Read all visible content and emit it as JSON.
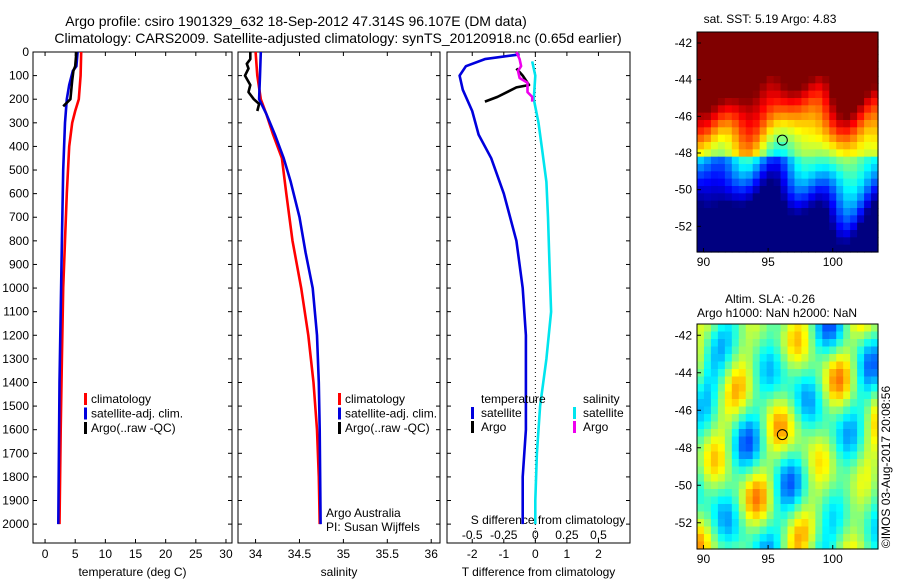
{
  "header": {
    "line1": "Argo profile: csiro 1901329_632 18-Sep-2012 47.314S 96.107E (DM data)",
    "line2": "Climatology: CARS2009. Satellite-adjusted climatology: synTS_20120918.nc (0.65d earlier)"
  },
  "colors": {
    "climatology": "#ff0000",
    "satellite": "#0000dd",
    "argo": "#000000",
    "salinity_satellite": "#00e5ee",
    "salinity_argo": "#ee00ee"
  },
  "depth_ticks": [
    "0",
    "100",
    "200",
    "300",
    "400",
    "500",
    "600",
    "700",
    "800",
    "900",
    "1000",
    "1100",
    "1200",
    "1300",
    "1400",
    "1500",
    "1600",
    "1700",
    "1800",
    "1900",
    "2000"
  ],
  "chart_data": [
    {
      "type": "line",
      "xlabel": "temperature (deg C)",
      "xticks": [
        "0",
        "5",
        "10",
        "15",
        "20",
        "25",
        "30"
      ],
      "xlim": [
        -2,
        31
      ],
      "ylim": [
        2080,
        0
      ],
      "legend": {
        "placement": "lower-center",
        "entries": [
          {
            "label": "climatology",
            "color": "#ff0000"
          },
          {
            "label": "satellite-adj. clim.",
            "color": "#0000dd"
          },
          {
            "label": "Argo(..raw -QC)",
            "color": "#000000"
          }
        ]
      },
      "series": [
        {
          "color": "#ff0000",
          "points": [
            [
              6.0,
              0
            ],
            [
              5.9,
              100
            ],
            [
              5.6,
              200
            ],
            [
              5.0,
              250
            ],
            [
              4.5,
              300
            ],
            [
              4.0,
              400
            ],
            [
              3.6,
              600
            ],
            [
              3.3,
              800
            ],
            [
              3.0,
              1000
            ],
            [
              2.8,
              1300
            ],
            [
              2.6,
              1600
            ],
            [
              2.5,
              1800
            ],
            [
              2.4,
              2000
            ]
          ]
        },
        {
          "color": "#0000dd",
          "points": [
            [
              5.4,
              0
            ],
            [
              5.2,
              60
            ],
            [
              4.6,
              80
            ],
            [
              4.0,
              140
            ],
            [
              3.6,
              200
            ],
            [
              3.3,
              300
            ],
            [
              3.0,
              500
            ],
            [
              2.8,
              800
            ],
            [
              2.6,
              1100
            ],
            [
              2.4,
              1400
            ],
            [
              2.3,
              1700
            ],
            [
              2.2,
              2000
            ]
          ]
        },
        {
          "color": "#000000",
          "points": [
            [
              5.2,
              0
            ],
            [
              5.0,
              60
            ],
            [
              4.7,
              80
            ],
            [
              4.5,
              120
            ],
            [
              4.2,
              200
            ],
            [
              3.0,
              230
            ]
          ]
        }
      ]
    },
    {
      "type": "line",
      "xlabel": "salinity",
      "xticks": [
        "34",
        "34.5",
        "35",
        "35.5",
        "36"
      ],
      "xlim": [
        33.8,
        36.1
      ],
      "ylim": [
        2080,
        0
      ],
      "legend": {
        "placement": "lower-center",
        "entries": [
          {
            "label": "climatology",
            "color": "#ff0000"
          },
          {
            "label": "satellite-adj. clim.",
            "color": "#0000dd"
          },
          {
            "label": "Argo(..raw -QC)",
            "color": "#000000"
          }
        ]
      },
      "annotations": [
        "Argo Australia",
        "PI: Susan Wijffels"
      ],
      "series": [
        {
          "color": "#ff0000",
          "points": [
            [
              34.0,
              0
            ],
            [
              34.02,
              100
            ],
            [
              34.06,
              200
            ],
            [
              34.12,
              260
            ],
            [
              34.2,
              350
            ],
            [
              34.3,
              450
            ],
            [
              34.35,
              600
            ],
            [
              34.42,
              800
            ],
            [
              34.52,
              1000
            ],
            [
              34.6,
              1200
            ],
            [
              34.66,
              1400
            ],
            [
              34.7,
              1600
            ],
            [
              34.72,
              1800
            ],
            [
              34.73,
              2000
            ]
          ]
        },
        {
          "color": "#0000dd",
          "points": [
            [
              34.06,
              0
            ],
            [
              34.05,
              100
            ],
            [
              34.04,
              200
            ],
            [
              34.12,
              260
            ],
            [
              34.22,
              350
            ],
            [
              34.32,
              450
            ],
            [
              34.4,
              550
            ],
            [
              34.5,
              700
            ],
            [
              34.57,
              850
            ],
            [
              34.65,
              1000
            ],
            [
              34.7,
              1200
            ],
            [
              34.72,
              1400
            ],
            [
              34.73,
              1600
            ],
            [
              34.74,
              2000
            ]
          ]
        },
        {
          "color": "#000000",
          "points": [
            [
              33.94,
              0
            ],
            [
              33.94,
              30
            ],
            [
              33.9,
              50
            ],
            [
              33.92,
              70
            ],
            [
              33.88,
              100
            ],
            [
              33.94,
              140
            ],
            [
              33.92,
              170
            ],
            [
              33.98,
              200
            ],
            [
              34.04,
              220
            ],
            [
              34.02,
              250
            ]
          ]
        }
      ]
    },
    {
      "type": "line",
      "xlabel": "T difference from climatology",
      "xticks": [
        "-2",
        "-1",
        "0",
        "1",
        "2"
      ],
      "x2label": "S difference from climatology",
      "x2ticks": [
        "-0.5",
        "-0.25",
        "0",
        "0.25",
        "0.5"
      ],
      "xlim": [
        -2.8,
        3.0
      ],
      "ylim": [
        2080,
        0
      ],
      "legend": {
        "placement": "lower-center",
        "temperature_title": "temperature",
        "salinity_title": "salinity",
        "entries": [
          {
            "label": "satellite",
            "color": "#0000dd",
            "group": "temperature"
          },
          {
            "label": "Argo",
            "color": "#000000",
            "group": "temperature"
          },
          {
            "label": "satellite",
            "color": "#00e5ee",
            "group": "salinity"
          },
          {
            "label": "Argo",
            "color": "#ee00ee",
            "group": "salinity"
          }
        ]
      },
      "series": [
        {
          "color": "#0000dd",
          "points": [
            [
              -0.5,
              10
            ],
            [
              -1.6,
              30
            ],
            [
              -2.2,
              60
            ],
            [
              -2.4,
              100
            ],
            [
              -2.3,
              160
            ],
            [
              -2.0,
              250
            ],
            [
              -1.8,
              350
            ],
            [
              -1.4,
              450
            ],
            [
              -1.0,
              600
            ],
            [
              -0.6,
              800
            ],
            [
              -0.4,
              1000
            ],
            [
              -0.3,
              1200
            ],
            [
              -0.3,
              1400
            ],
            [
              -0.3,
              1600
            ],
            [
              -0.4,
              1800
            ],
            [
              -0.4,
              2000
            ]
          ]
        },
        {
          "color": "#000000",
          "points": [
            [
              -0.6,
              70
            ],
            [
              -0.4,
              100
            ],
            [
              -0.2,
              140
            ],
            [
              -0.6,
              150
            ],
            [
              -1.2,
              190
            ],
            [
              -1.6,
              210
            ]
          ]
        },
        {
          "color": "#00e5ee",
          "points": [
            [
              -0.1,
              40
            ],
            [
              0.0,
              100
            ],
            [
              -0.05,
              200
            ],
            [
              0.1,
              300
            ],
            [
              0.2,
              400
            ],
            [
              0.35,
              550
            ],
            [
              0.4,
              700
            ],
            [
              0.45,
              900
            ],
            [
              0.5,
              1100
            ],
            [
              0.35,
              1300
            ],
            [
              0.15,
              1500
            ],
            [
              0.05,
              1700
            ],
            [
              0.0,
              1900
            ],
            [
              0.0,
              2000
            ]
          ]
        },
        {
          "color": "#ee00ee",
          "points": [
            [
              -0.6,
              0
            ],
            [
              -0.5,
              30
            ],
            [
              -0.45,
              60
            ],
            [
              -0.55,
              80
            ],
            [
              -0.5,
              110
            ],
            [
              -0.25,
              130
            ],
            [
              -0.25,
              170
            ],
            [
              -0.1,
              190
            ],
            [
              -0.1,
              210
            ]
          ]
        }
      ]
    },
    {
      "type": "heatmap",
      "title": "sat. SST: 5.19 Argo: 4.83",
      "xticks": [
        "90",
        "95",
        "100"
      ],
      "yticks": [
        "-42",
        "-44",
        "-46",
        "-48",
        "-50",
        "-52"
      ],
      "xlim": [
        89.5,
        103.5
      ],
      "ylim": [
        -53.4,
        -41.4
      ],
      "marker": {
        "lon": 96.1,
        "lat": -47.3
      }
    },
    {
      "type": "heatmap",
      "title": "Altim. SLA: -0.26",
      "subtitle": "Argo h1000: NaN h2000: NaN",
      "xticks": [
        "90",
        "95",
        "100"
      ],
      "yticks": [
        "-42",
        "-44",
        "-46",
        "-48",
        "-50",
        "-52"
      ],
      "xlim": [
        89.5,
        103.5
      ],
      "ylim": [
        -53.4,
        -41.4
      ],
      "marker": {
        "lon": 96.1,
        "lat": -47.3
      }
    }
  ],
  "footer": {
    "stamp": "©IMOS 03-Aug-2017 20:08:56"
  }
}
